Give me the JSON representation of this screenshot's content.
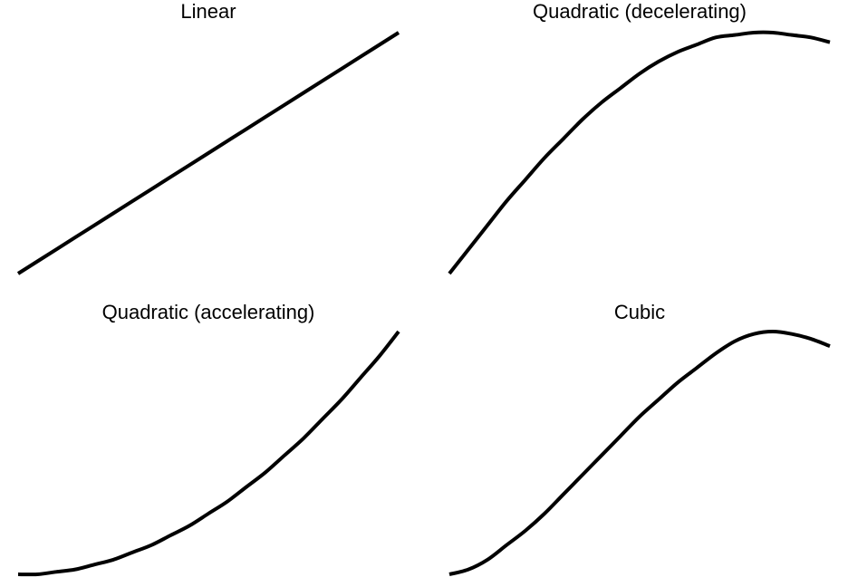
{
  "chart_data": [
    {
      "type": "line",
      "title": "Linear",
      "xlabel": "",
      "ylabel": "",
      "grid": false,
      "axes_visible": false,
      "x": [
        0,
        0.1,
        0.2,
        0.3,
        0.4,
        0.5,
        0.6,
        0.7,
        0.8,
        0.9,
        1
      ],
      "series": [
        {
          "values": [
            0,
            0.1,
            0.2,
            0.3,
            0.4,
            0.5,
            0.6,
            0.7,
            0.8,
            0.9,
            1
          ],
          "color": "#000000"
        }
      ],
      "xlim": [
        0,
        1
      ],
      "ylim": [
        0,
        1
      ]
    },
    {
      "type": "line",
      "title": "Quadratic (decelerating)",
      "xlabel": "",
      "ylabel": "",
      "grid": false,
      "axes_visible": false,
      "x": [
        0,
        0.05,
        0.1,
        0.15,
        0.2,
        0.25,
        0.3,
        0.35,
        0.4,
        0.45,
        0.5,
        0.55,
        0.6,
        0.65,
        0.7,
        0.75,
        0.8,
        0.85,
        0.9,
        0.95,
        1
      ],
      "series": [
        {
          "values": [
            0,
            0.1,
            0.2,
            0.3,
            0.39,
            0.48,
            0.56,
            0.64,
            0.71,
            0.77,
            0.83,
            0.88,
            0.92,
            0.95,
            0.98,
            0.99,
            1,
            1,
            0.99,
            0.98,
            0.96
          ],
          "color": "#000000"
        }
      ],
      "xlim": [
        0,
        1
      ],
      "ylim": [
        0,
        1
      ]
    },
    {
      "type": "line",
      "title": "Quadratic (accelerating)",
      "xlabel": "",
      "ylabel": "",
      "grid": false,
      "axes_visible": false,
      "x": [
        0,
        0.05,
        0.1,
        0.15,
        0.2,
        0.25,
        0.3,
        0.35,
        0.4,
        0.45,
        0.5,
        0.55,
        0.6,
        0.65,
        0.7,
        0.75,
        0.8,
        0.85,
        0.9,
        0.95,
        1
      ],
      "series": [
        {
          "values": [
            0,
            0,
            0.01,
            0.02,
            0.04,
            0.06,
            0.09,
            0.12,
            0.16,
            0.2,
            0.25,
            0.3,
            0.36,
            0.42,
            0.49,
            0.56,
            0.64,
            0.72,
            0.81,
            0.9,
            1
          ],
          "color": "#000000"
        }
      ],
      "xlim": [
        0,
        1
      ],
      "ylim": [
        0,
        1
      ]
    },
    {
      "type": "line",
      "title": "Cubic",
      "xlabel": "",
      "ylabel": "",
      "grid": false,
      "axes_visible": false,
      "x": [
        0,
        0.05,
        0.1,
        0.15,
        0.2,
        0.25,
        0.3,
        0.35,
        0.4,
        0.45,
        0.5,
        0.55,
        0.6,
        0.65,
        0.7,
        0.75,
        0.8,
        0.85,
        0.9,
        0.95,
        1
      ],
      "series": [
        {
          "values": [
            0,
            0.02,
            0.06,
            0.12,
            0.18,
            0.25,
            0.33,
            0.41,
            0.49,
            0.57,
            0.65,
            0.72,
            0.79,
            0.85,
            0.91,
            0.96,
            0.99,
            1,
            0.99,
            0.97,
            0.94
          ],
          "color": "#000000"
        }
      ],
      "xlim": [
        0,
        1
      ],
      "ylim": [
        0,
        1
      ]
    }
  ]
}
